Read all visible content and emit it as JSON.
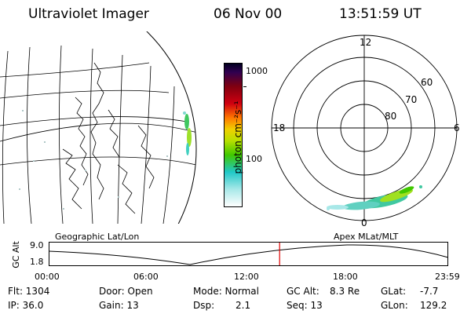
{
  "header": {
    "title": "Ultraviolet Imager",
    "date": "06 Nov 00",
    "time": "13:51:59 UT"
  },
  "colorbar": {
    "label": "photon cm⁻²s⁻¹",
    "ticks": [
      "1000",
      "100"
    ]
  },
  "polar_plot": {
    "mlt_labels": {
      "top": "12",
      "left": "18",
      "right": "6",
      "bottom": "0"
    },
    "lat_labels": [
      "60",
      "70",
      "80"
    ]
  },
  "timeline": {
    "left_title": "Geographic Lat/Lon",
    "right_title": "Apex MLat/MLT",
    "y_label": "GC Alt",
    "y_ticks": [
      "9.0",
      "1.8"
    ],
    "x_ticks": [
      "00:00",
      "06:00",
      "12:00",
      "18:00",
      "23:59"
    ],
    "current_time_fraction": 0.578,
    "marker_color": "#e00000"
  },
  "info": {
    "flt": "Flt: 1304",
    "ip": "IP: 36.0",
    "door": "Door: Open",
    "gain": "Gain: 13",
    "mode": "Mode: Normal",
    "dsp_label": "Dsp:",
    "dsp_value": "2.1",
    "gcalt_label": "GC Alt:",
    "gcalt_value": "8.3 Re",
    "seq": "Seq: 13",
    "glat_label": "GLat:",
    "glat_value": "-7.7",
    "glon_label": "GLon:",
    "glon_value": "129.2"
  }
}
